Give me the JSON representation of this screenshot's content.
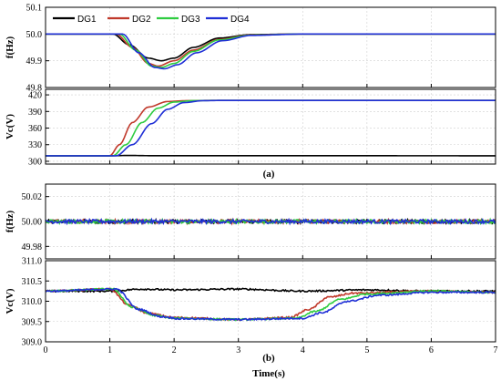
{
  "chart_data": [
    {
      "type": "line",
      "panel_caption": "(a)",
      "legend": [
        "DG1",
        "DG2",
        "DG3",
        "DG4"
      ],
      "colors": {
        "DG1": "#000000",
        "DG2": "#c0392b",
        "DG3": "#2ecc40",
        "DG4": "#1f2fd6"
      },
      "subplots": [
        {
          "ylabel": "f(Hz)",
          "ylim": [
            49.8,
            50.1
          ],
          "yticks": [
            "50.1",
            "50.0",
            "49.9",
            "49.8"
          ],
          "tickvals": [
            50.1,
            50.0,
            49.9,
            49.8
          ],
          "series": [
            {
              "name": "DG1",
              "points": [
                [
                  0,
                  50.0
                ],
                [
                  1.05,
                  50.0
                ],
                [
                  1.3,
                  49.96
                ],
                [
                  1.6,
                  49.91
                ],
                [
                  1.8,
                  49.9
                ],
                [
                  2.0,
                  49.91
                ],
                [
                  2.3,
                  49.95
                ],
                [
                  2.7,
                  49.985
                ],
                [
                  3.2,
                  49.998
                ],
                [
                  4,
                  50.0
                ],
                [
                  7,
                  50.0
                ]
              ]
            },
            {
              "name": "DG2",
              "points": [
                [
                  0,
                  50.0
                ],
                [
                  1.1,
                  50.0
                ],
                [
                  1.35,
                  49.95
                ],
                [
                  1.6,
                  49.89
                ],
                [
                  1.75,
                  49.88
                ],
                [
                  2.0,
                  49.9
                ],
                [
                  2.3,
                  49.94
                ],
                [
                  2.7,
                  49.98
                ],
                [
                  3.2,
                  49.997
                ],
                [
                  4,
                  50.0
                ],
                [
                  7,
                  50.0
                ]
              ]
            },
            {
              "name": "DG3",
              "points": [
                [
                  0,
                  50.0
                ],
                [
                  1.15,
                  50.0
                ],
                [
                  1.4,
                  49.94
                ],
                [
                  1.65,
                  49.88
                ],
                [
                  1.8,
                  49.875
                ],
                [
                  2.0,
                  49.89
                ],
                [
                  2.3,
                  49.935
                ],
                [
                  2.7,
                  49.978
                ],
                [
                  3.2,
                  49.996
                ],
                [
                  4,
                  50.0
                ],
                [
                  7,
                  50.0
                ]
              ]
            },
            {
              "name": "DG4",
              "points": [
                [
                  0,
                  50.0
                ],
                [
                  1.2,
                  50.0
                ],
                [
                  1.45,
                  49.93
                ],
                [
                  1.7,
                  49.875
                ],
                [
                  1.85,
                  49.87
                ],
                [
                  2.05,
                  49.885
                ],
                [
                  2.35,
                  49.93
                ],
                [
                  2.75,
                  49.975
                ],
                [
                  3.2,
                  49.995
                ],
                [
                  4,
                  50.0
                ],
                [
                  7,
                  50.0
                ]
              ]
            }
          ]
        },
        {
          "ylabel": "Vc(V)",
          "ylim": [
            295,
            430
          ],
          "yticks": [
            "420",
            "390",
            "360",
            "330",
            "300"
          ],
          "tickvals": [
            420,
            390,
            360,
            330,
            300
          ],
          "series": [
            {
              "name": "DG1",
              "points": [
                [
                  0,
                  310
                ],
                [
                  1.0,
                  310
                ],
                [
                  1.3,
                  310.6
                ],
                [
                  1.6,
                  310.2
                ],
                [
                  7,
                  310
                ]
              ]
            },
            {
              "name": "DG2",
              "points": [
                [
                  0,
                  310
                ],
                [
                  1.0,
                  310
                ],
                [
                  1.15,
                  330
                ],
                [
                  1.35,
                  370
                ],
                [
                  1.6,
                  398
                ],
                [
                  1.9,
                  408
                ],
                [
                  2.2,
                  409.5
                ],
                [
                  2.6,
                  410
                ],
                [
                  7,
                  410
                ]
              ]
            },
            {
              "name": "DG3",
              "points": [
                [
                  0,
                  310
                ],
                [
                  1.05,
                  310
                ],
                [
                  1.25,
                  330
                ],
                [
                  1.5,
                  370
                ],
                [
                  1.75,
                  396
                ],
                [
                  2.0,
                  407
                ],
                [
                  2.3,
                  409.5
                ],
                [
                  2.7,
                  410
                ],
                [
                  7,
                  410
                ]
              ]
            },
            {
              "name": "DG4",
              "points": [
                [
                  0,
                  310
                ],
                [
                  1.1,
                  310
                ],
                [
                  1.35,
                  330
                ],
                [
                  1.65,
                  368
                ],
                [
                  1.9,
                  394
                ],
                [
                  2.15,
                  406
                ],
                [
                  2.45,
                  409.5
                ],
                [
                  2.8,
                  410
                ],
                [
                  7,
                  410
                ]
              ]
            }
          ]
        }
      ]
    },
    {
      "type": "line",
      "panel_caption": "(b)",
      "xlabel": "Time(s)",
      "xlim": [
        0,
        7
      ],
      "xticks": [
        "0",
        "1",
        "2",
        "3",
        "4",
        "5",
        "6",
        "7"
      ],
      "subplots": [
        {
          "ylabel": "f(Hz)",
          "ylim": [
            49.97,
            50.03
          ],
          "yticks": [
            "50.02",
            "50.00",
            "49.98"
          ],
          "tickvals": [
            50.02,
            50.0,
            49.98
          ],
          "noise": 0.0015,
          "series": [
            {
              "name": "DG1",
              "points": [
                [
                  0,
                  50.0
                ],
                [
                  7,
                  50.0
                ]
              ]
            },
            {
              "name": "DG2",
              "points": [
                [
                  0,
                  50.0
                ],
                [
                  7,
                  50.0
                ]
              ]
            },
            {
              "name": "DG3",
              "points": [
                [
                  0,
                  50.0
                ],
                [
                  7,
                  50.0
                ]
              ]
            },
            {
              "name": "DG4",
              "points": [
                [
                  0,
                  50.0
                ],
                [
                  7,
                  50.0
                ]
              ]
            }
          ]
        },
        {
          "ylabel": "Vc(V)",
          "ylim": [
            309.0,
            311.0
          ],
          "yticks": [
            "311.0",
            "310.5",
            "310.0",
            "309.5",
            "309.0"
          ],
          "tickvals": [
            311.0,
            310.5,
            310.0,
            309.5,
            309.0
          ],
          "noise": 0.02,
          "series": [
            {
              "name": "DG1",
              "points": [
                [
                  0,
                  310.25
                ],
                [
                  1.0,
                  310.25
                ],
                [
                  1.5,
                  310.3
                ],
                [
                  2,
                  310.28
                ],
                [
                  3,
                  310.3
                ],
                [
                  4,
                  310.25
                ],
                [
                  5,
                  310.28
                ],
                [
                  6,
                  310.25
                ],
                [
                  7,
                  310.25
                ]
              ]
            },
            {
              "name": "DG2",
              "points": [
                [
                  0,
                  310.25
                ],
                [
                  1.0,
                  310.3
                ],
                [
                  1.3,
                  309.9
                ],
                [
                  1.6,
                  309.7
                ],
                [
                  2,
                  309.6
                ],
                [
                  3,
                  309.55
                ],
                [
                  3.8,
                  309.6
                ],
                [
                  4.1,
                  309.8
                ],
                [
                  4.4,
                  310.1
                ],
                [
                  4.8,
                  310.2
                ],
                [
                  6,
                  310.25
                ],
                [
                  7,
                  310.22
                ]
              ]
            },
            {
              "name": "DG3",
              "points": [
                [
                  0,
                  310.25
                ],
                [
                  1.05,
                  310.3
                ],
                [
                  1.35,
                  309.85
                ],
                [
                  1.7,
                  309.65
                ],
                [
                  2,
                  309.58
                ],
                [
                  3,
                  309.55
                ],
                [
                  3.9,
                  309.58
                ],
                [
                  4.2,
                  309.75
                ],
                [
                  4.6,
                  310.05
                ],
                [
                  5,
                  310.18
                ],
                [
                  6,
                  310.25
                ],
                [
                  7,
                  310.22
                ]
              ]
            },
            {
              "name": "DG4",
              "points": [
                [
                  0,
                  310.25
                ],
                [
                  1.1,
                  310.3
                ],
                [
                  1.45,
                  309.8
                ],
                [
                  1.8,
                  309.62
                ],
                [
                  2.1,
                  309.57
                ],
                [
                  3,
                  309.55
                ],
                [
                  4.0,
                  309.58
                ],
                [
                  4.3,
                  309.72
                ],
                [
                  4.7,
                  310.0
                ],
                [
                  5.2,
                  310.15
                ],
                [
                  6,
                  310.22
                ],
                [
                  7,
                  310.22
                ]
              ]
            }
          ]
        }
      ]
    }
  ]
}
